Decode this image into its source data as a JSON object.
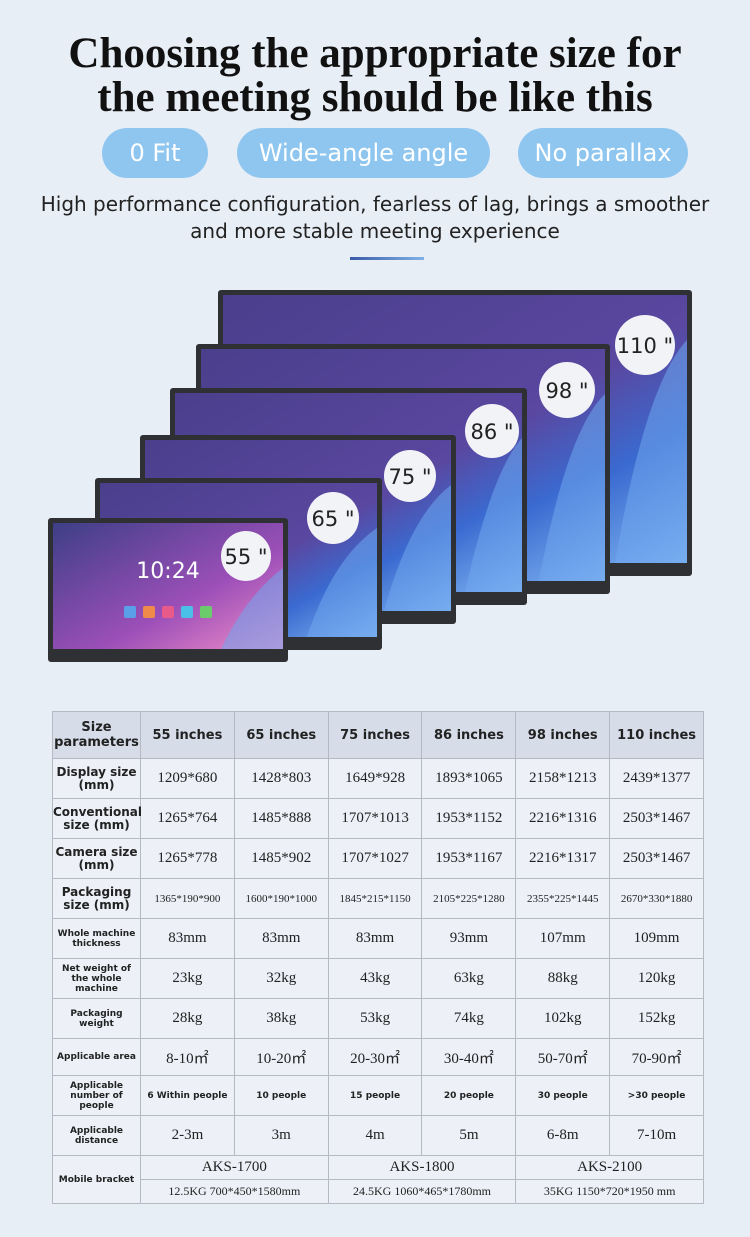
{
  "header": {
    "title": [
      "Choosing the appropriate size for",
      "the meeting should be like this"
    ],
    "tags": [
      "0 Fit",
      "Wide-angle angle",
      "No parallax"
    ],
    "subtitle": [
      "High performance configuration, fearless of lag, brings a smoother",
      "and more stable meeting experience"
    ]
  },
  "screens": {
    "clock": "10:24",
    "labels": [
      "110 \"",
      "98 \"",
      "86 \"",
      "75 \"",
      "65 \"",
      "55 \""
    ]
  },
  "table": {
    "header": [
      "Size parameters",
      "55 inches",
      "65 inches",
      "75 inches",
      "86 inches",
      "98 inches",
      "110 inches"
    ],
    "rows": [
      [
        "Display size (mm)",
        "1209*680",
        "1428*803",
        "1649*928",
        "1893*1065",
        "2158*1213",
        "2439*1377"
      ],
      [
        "Conventional size (mm)",
        "1265*764",
        "1485*888",
        "1707*1013",
        "1953*1152",
        "2216*1316",
        "2503*1467"
      ],
      [
        "Camera size (mm)",
        "1265*778",
        "1485*902",
        "1707*1027",
        "1953*1167",
        "2216*1317",
        "2503*1467"
      ],
      [
        "Packaging size (mm)",
        "1365*190*900",
        "1600*190*1000",
        "1845*215*1150",
        "2105*225*1280",
        "2355*225*1445",
        "2670*330*1880"
      ],
      [
        "Whole machine thickness",
        "83mm",
        "83mm",
        "83mm",
        "93mm",
        "107mm",
        "109mm"
      ],
      [
        "Net weight of the whole machine",
        "23kg",
        "32kg",
        "43kg",
        "63kg",
        "88kg",
        "120kg"
      ],
      [
        "Packaging weight",
        "28kg",
        "38kg",
        "53kg",
        "74kg",
        "102kg",
        "152kg"
      ],
      [
        "Applicable area",
        "8-10㎡",
        "10-20㎡",
        "20-30㎡",
        "30-40㎡",
        "50-70㎡",
        "70-90㎡"
      ],
      [
        "Applicable number of people",
        "6 Within people",
        "10 people",
        "15 people",
        "20 people",
        "30 people",
        ">30 people"
      ],
      [
        "Applicable distance",
        "2-3m",
        "3m",
        "4m",
        "5m",
        "6-8m",
        "7-10m"
      ]
    ],
    "bracket": {
      "label": "Mobile bracket",
      "items": [
        {
          "model": "AKS-1700",
          "spec": "12.5KG  700*450*1580mm"
        },
        {
          "model": "AKS-1800",
          "spec": "24.5KG  1060*465*1780mm"
        },
        {
          "model": "AKS-2100",
          "spec": "35KG  1150*720*1950 mm"
        }
      ]
    }
  }
}
